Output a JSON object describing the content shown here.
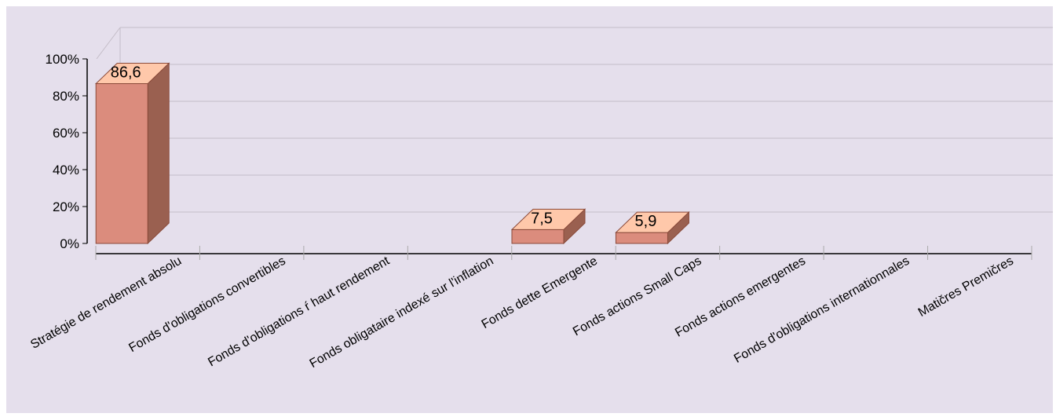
{
  "chart_data": {
    "type": "bar",
    "categories": [
      "Stratégie de rendement absolu",
      "Fonds d'obligations convertibles",
      "Fonds d'obligations ŕ haut rendement",
      "Fonds obligataire indexé sur l'inflation",
      "Fonds dette Emergente",
      "Fonds actions Small Caps",
      "Fonds actions emergentes",
      "Fonds d'obligations internationnales",
      "Matičres Premičres"
    ],
    "values": [
      86.6,
      0,
      0,
      0,
      7.5,
      5.9,
      0,
      0,
      0
    ],
    "data_labels": [
      "86,6",
      "",
      "",
      "",
      "7,5",
      "5,9",
      "",
      "",
      ""
    ],
    "y_ticks": [
      "0%",
      "20%",
      "40%",
      "60%",
      "80%",
      "100%"
    ],
    "ylim": [
      0,
      100
    ],
    "grid": true,
    "colors": {
      "background": "#e5dfec",
      "bar_front": "#db8c7d",
      "bar_top": "#ffc8aa",
      "bar_side": "#9a6050",
      "bar_edge": "#8a4a3a",
      "grid": "#c4bdc8",
      "axis": "#000000"
    }
  }
}
